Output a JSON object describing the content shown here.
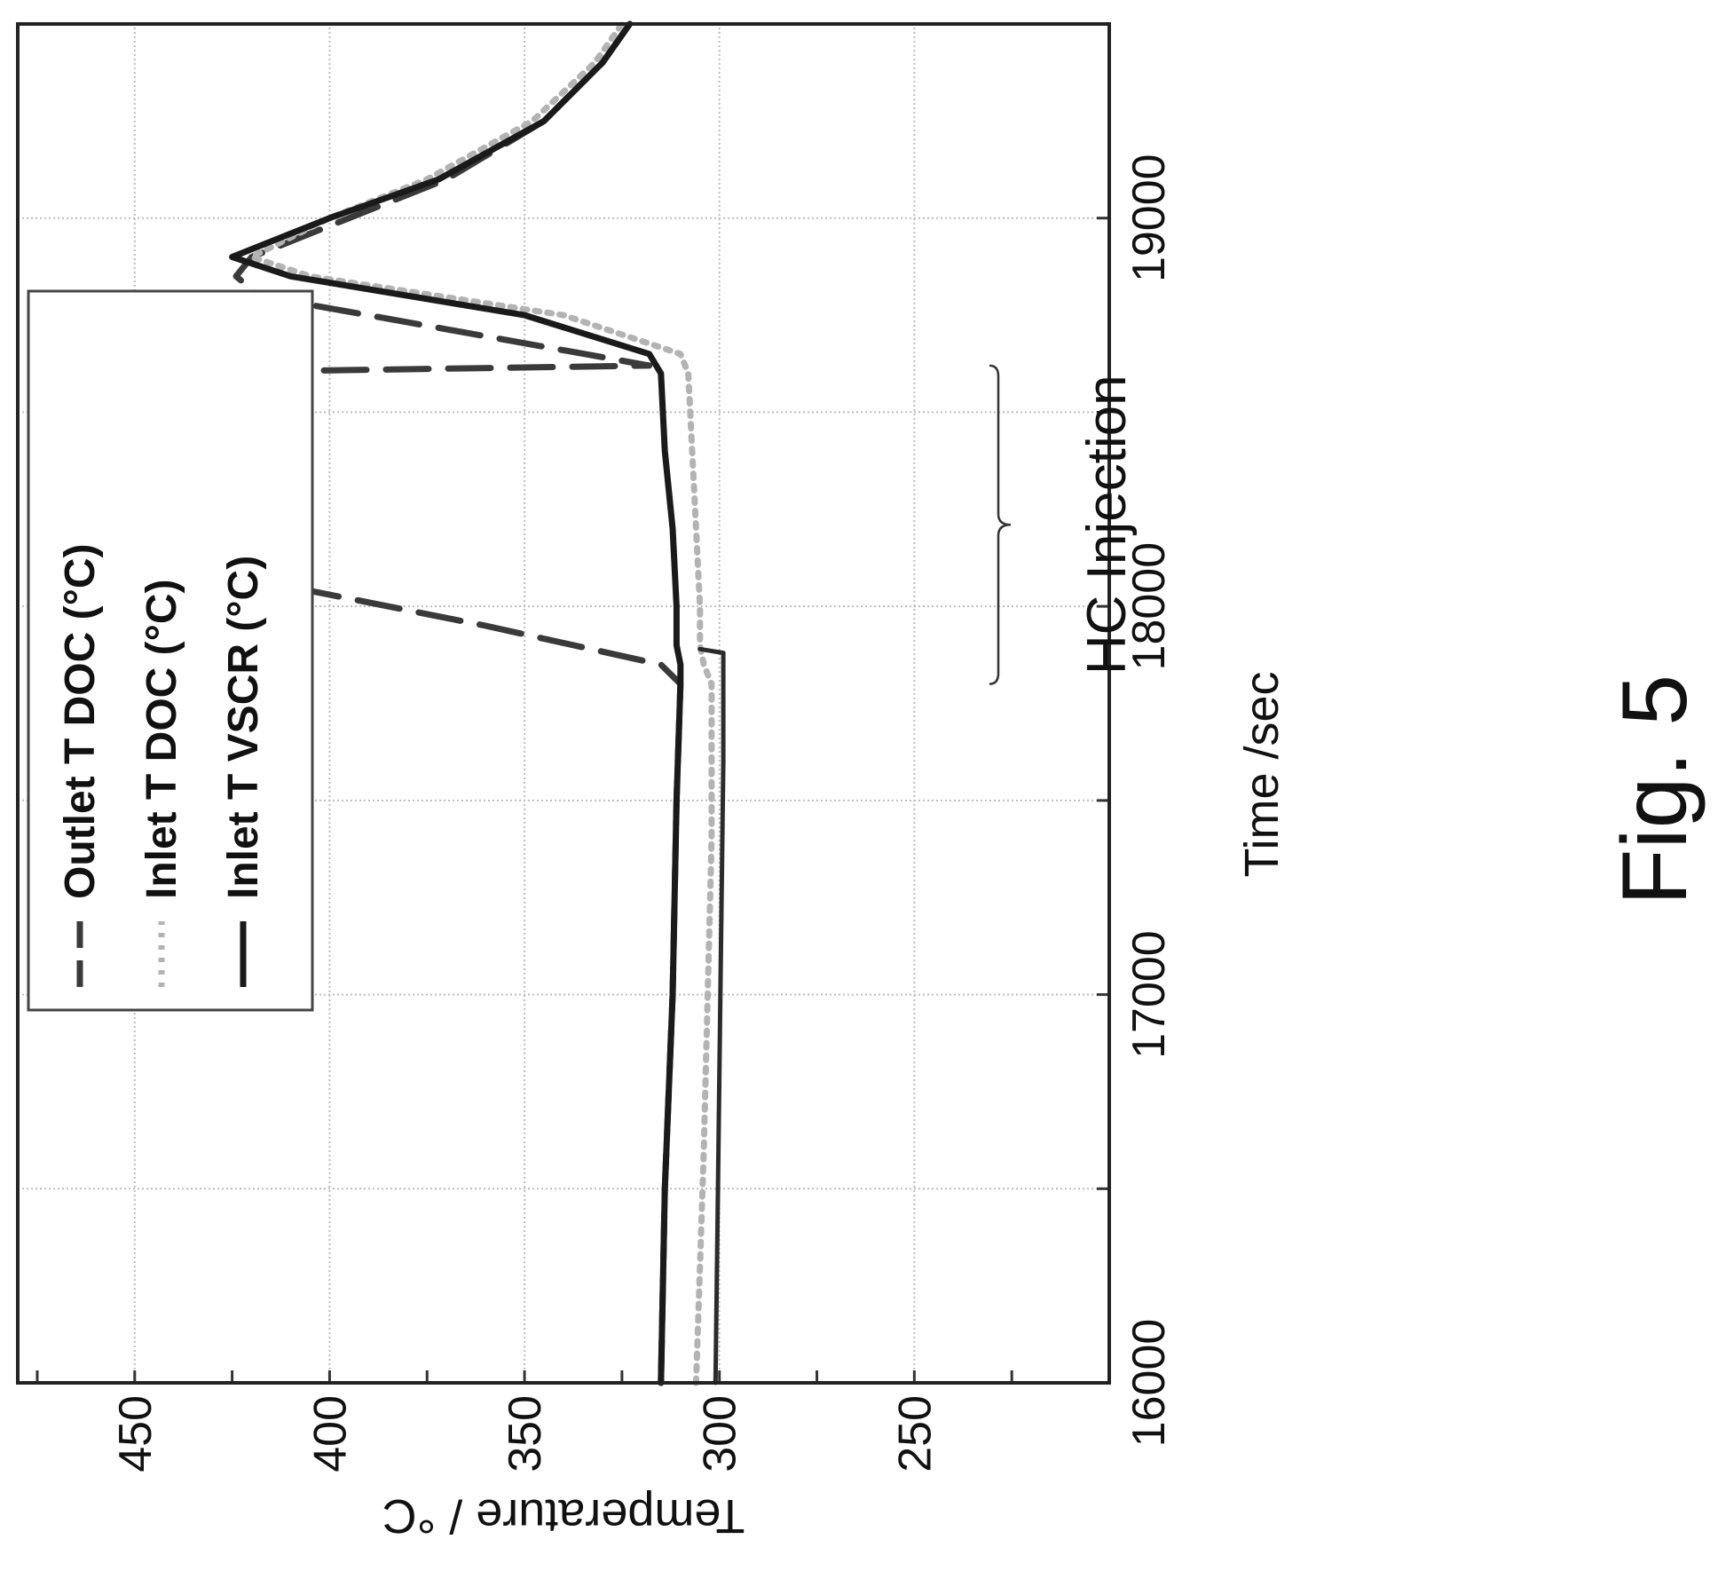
{
  "figure": {
    "label": "Fig. 5"
  },
  "chart_data": {
    "type": "line",
    "title": "",
    "xlabel": "Time /sec",
    "ylabel": "Temperature / °C",
    "xlim": [
      16000,
      19500
    ],
    "ylim": [
      200,
      480
    ],
    "x_ticks": [
      16000,
      17000,
      18000,
      19000
    ],
    "x_tick_labels": [
      "16000",
      "17000",
      "18000",
      "19000"
    ],
    "x_minor_ticks": [
      16000,
      16500,
      17000,
      17500,
      18000,
      18500,
      19000,
      19500
    ],
    "y_ticks": [
      250,
      300,
      350,
      400,
      450
    ],
    "y_tick_labels": [
      "250",
      "300",
      "350",
      "400",
      "450"
    ],
    "y_minor_ticks": [
      225,
      250,
      275,
      300,
      325,
      350,
      375,
      400,
      425,
      450,
      475
    ],
    "grid": true,
    "legend_position": "top-left",
    "series": [
      {
        "name": "Outlet T DOC (°C)",
        "style": "dashed",
        "color": "#3a3a3a",
        "x": [
          16000,
          16500,
          17000,
          17500,
          17800,
          17850,
          17950,
          18050,
          18150,
          18250,
          18300,
          18400,
          18450,
          18550,
          18600,
          18620,
          18800,
          18850,
          18900,
          19000,
          19100,
          19250,
          19400,
          19500
        ],
        "y": [
          315,
          314,
          312,
          311,
          310,
          315,
          360,
          410,
          435,
          445,
          450,
          446,
          450,
          452,
          452,
          318,
          418,
          424,
          420,
          395,
          370,
          345,
          330,
          323
        ]
      },
      {
        "name": "Inlet T DOC (°C)",
        "style": "dotted",
        "color": "#b3b3b3",
        "x": [
          16000,
          16300,
          16600,
          17000,
          17400,
          17800,
          17850,
          17900,
          18000,
          18200,
          18400,
          18600,
          18650,
          18750,
          18850,
          18900,
          19000,
          19100,
          19250,
          19400,
          19500
        ],
        "y": [
          306,
          305,
          304,
          303,
          302,
          302,
          304,
          305,
          305,
          306,
          307,
          308,
          310,
          340,
          405,
          420,
          400,
          375,
          348,
          332,
          325
        ]
      },
      {
        "name": "Inlet T VSCR (°C)",
        "style": "solid",
        "color": "#1a1a1a",
        "x": [
          16000,
          16500,
          17000,
          17500,
          17800,
          17850,
          17900,
          18000,
          18200,
          18400,
          18600,
          18650,
          18750,
          18850,
          18900,
          19000,
          19100,
          19250,
          19400,
          19500
        ],
        "y": [
          315,
          314,
          312,
          311,
          310,
          310,
          311,
          311,
          312,
          314,
          315,
          318,
          350,
          410,
          425,
          400,
          372,
          345,
          330,
          323
        ]
      },
      {
        "name": "",
        "style": "solid-thin",
        "color": "#2b2b2b",
        "x": [
          16000,
          16400,
          16800,
          17200,
          17600,
          17880,
          17890
        ],
        "y": [
          301,
          300.5,
          300,
          299.5,
          299,
          299,
          305
        ]
      }
    ],
    "annotations": [
      {
        "text": "HC Injection",
        "type": "bracket",
        "x_from": 17800,
        "x_to": 18620
      }
    ]
  }
}
